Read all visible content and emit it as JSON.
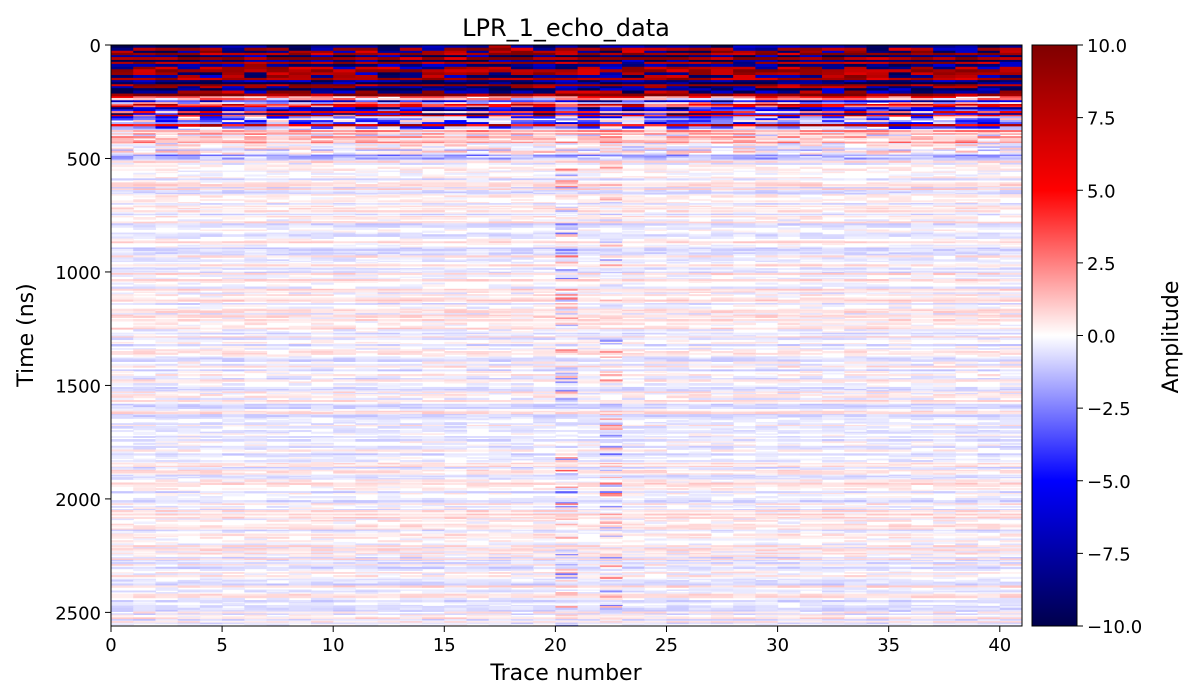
{
  "chart_data": {
    "type": "heatmap",
    "title": "LPR_1_echo_data",
    "xlabel": "Trace number",
    "ylabel": "Time (ns)",
    "xlim": [
      0,
      41
    ],
    "ylim": [
      2560,
      0
    ],
    "x_ticks": [
      0,
      5,
      10,
      15,
      20,
      25,
      30,
      35,
      40
    ],
    "x_tick_labels": [
      "0",
      "5",
      "10",
      "15",
      "20",
      "25",
      "30",
      "35",
      "40"
    ],
    "y_ticks": [
      0,
      500,
      1000,
      1500,
      2000,
      2500
    ],
    "y_tick_labels": [
      "0",
      "500",
      "1000",
      "1500",
      "2000",
      "2500"
    ],
    "colorbar": {
      "label": "Amplitude",
      "range": [
        -10,
        10
      ],
      "colormap": "seismic",
      "ticks": [
        10,
        7.5,
        5,
        2.5,
        0,
        -2.5,
        -5,
        -7.5,
        -10
      ],
      "tick_labels": [
        "10.0",
        "7.5",
        "5.0",
        "2.5",
        "0.0",
        "−2.5",
        "−5.0",
        "−7.5",
        "−10.0"
      ]
    },
    "regions": [
      {
        "time_range": [
          0,
          220
        ],
        "description": "strong saturated alternating bands (|amplitude| ~10)"
      },
      {
        "time_range": [
          220,
          360
        ],
        "description": "strong wavy reflections, mixed red/blue"
      },
      {
        "time_range": [
          360,
          500
        ],
        "description": "moderate reflections (|amplitude| ~2-4)"
      },
      {
        "time_range": [
          500,
          2560
        ],
        "description": "weak noise (|amplitude| < 1.5), faint vertical streaks near traces 20.5 and 22.5"
      }
    ],
    "colors": {
      "neg_max": "#00004c",
      "neg_mid": "#0000ff",
      "zero": "#ffffff",
      "pos_mid": "#ff0000",
      "pos_max": "#7f0000"
    }
  }
}
